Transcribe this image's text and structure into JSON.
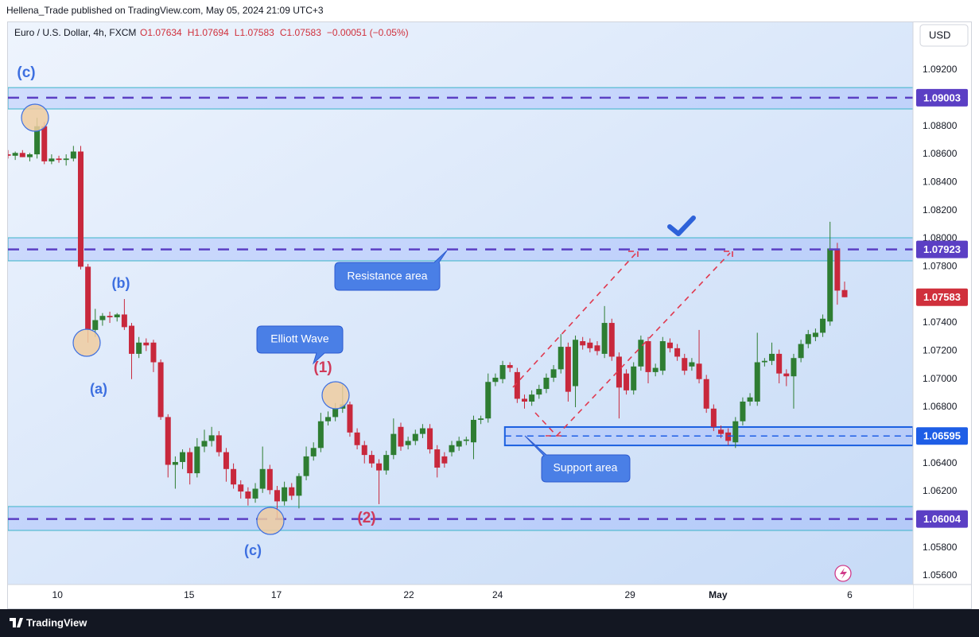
{
  "header": {
    "publisher": "Hellena_Trade published on TradingView.com, May 05, 2024 21:09 UTC+3",
    "logo": "TradingView"
  },
  "chart_data": {
    "type": "candlestick",
    "symbol": "Euro / U.S. Dollar, 4h, FXCM",
    "ohlc_legend": [
      "O1.07634",
      "H1.07694",
      "L1.07583",
      "C1.07583",
      "−0.00051 (−0.05%)"
    ],
    "currency": "USD",
    "up_color": "#2e7d32",
    "down_color": "#c8283c",
    "ohlc": [
      [
        1.086,
        1.0863,
        1.0857,
        1.0859
      ],
      [
        1.0859,
        1.0862,
        1.0856,
        1.0861
      ],
      [
        1.0861,
        1.0863,
        1.0858,
        1.0858
      ],
      [
        1.0858,
        1.0861,
        1.0855,
        1.086
      ],
      [
        1.086,
        1.0886,
        1.0857,
        1.088
      ],
      [
        1.088,
        1.0883,
        1.0853,
        1.0855
      ],
      [
        1.0855,
        1.086,
        1.0853,
        1.0857
      ],
      [
        1.0857,
        1.0859,
        1.0854,
        1.0856
      ],
      [
        1.0856,
        1.086,
        1.0852,
        1.0857
      ],
      [
        1.0857,
        1.0866,
        1.0855,
        1.0862
      ],
      [
        1.0862,
        1.0866,
        1.0778,
        1.078
      ],
      [
        1.078,
        1.0782,
        1.0726,
        1.0735
      ],
      [
        1.0735,
        1.075,
        1.073,
        1.0742
      ],
      [
        1.0742,
        1.0747,
        1.0738,
        1.0745
      ],
      [
        1.0745,
        1.0748,
        1.074,
        1.0744
      ],
      [
        1.0744,
        1.0747,
        1.0741,
        1.0746
      ],
      [
        1.0746,
        1.0757,
        1.0735,
        1.0737
      ],
      [
        1.0738,
        1.074,
        1.07,
        1.0718
      ],
      [
        1.0718,
        1.073,
        1.0715,
        1.0726
      ],
      [
        1.0726,
        1.0729,
        1.072,
        1.0724
      ],
      [
        1.0726,
        1.0728,
        1.0705,
        1.0712
      ],
      [
        1.0712,
        1.0714,
        1.0671,
        1.0673
      ],
      [
        1.0673,
        1.0675,
        1.063,
        1.0639
      ],
      [
        1.0639,
        1.0645,
        1.0622,
        1.0641
      ],
      [
        1.0641,
        1.065,
        1.0636,
        1.0648
      ],
      [
        1.0648,
        1.0651,
        1.0625,
        1.0633
      ],
      [
        1.0633,
        1.0658,
        1.063,
        1.0652
      ],
      [
        1.0652,
        1.0664,
        1.0648,
        1.0656
      ],
      [
        1.0656,
        1.0666,
        1.0652,
        1.066
      ],
      [
        1.066,
        1.0663,
        1.0645,
        1.0648
      ],
      [
        1.0648,
        1.0651,
        1.0627,
        1.0636
      ],
      [
        1.0636,
        1.064,
        1.0622,
        1.0625
      ],
      [
        1.0625,
        1.0628,
        1.0615,
        1.062
      ],
      [
        1.062,
        1.0623,
        1.061,
        1.0615
      ],
      [
        1.0615,
        1.0626,
        1.0612,
        1.0622
      ],
      [
        1.0622,
        1.0652,
        1.0619,
        1.0636
      ],
      [
        1.0636,
        1.0639,
        1.0618,
        1.0621
      ],
      [
        1.0621,
        1.0624,
        1.0601,
        1.0613
      ],
      [
        1.0613,
        1.0627,
        1.061,
        1.0623
      ],
      [
        1.0623,
        1.0626,
        1.0614,
        1.0617
      ],
      [
        1.0617,
        1.0633,
        1.0608,
        1.0631
      ],
      [
        1.0631,
        1.0652,
        1.0628,
        1.0645
      ],
      [
        1.0645,
        1.0655,
        1.0642,
        1.0651
      ],
      [
        1.0651,
        1.0676,
        1.0648,
        1.067
      ],
      [
        1.067,
        1.0677,
        1.0667,
        1.0673
      ],
      [
        1.0673,
        1.0683,
        1.067,
        1.0679
      ],
      [
        1.0679,
        1.0697,
        1.0676,
        1.0682
      ],
      [
        1.0682,
        1.0684,
        1.0659,
        1.0662
      ],
      [
        1.0662,
        1.0665,
        1.065,
        1.0653
      ],
      [
        1.0653,
        1.0656,
        1.064,
        1.0646
      ],
      [
        1.0646,
        1.0649,
        1.0637,
        1.064
      ],
      [
        1.064,
        1.0643,
        1.0611,
        1.0635
      ],
      [
        1.0635,
        1.0649,
        1.0632,
        1.0646
      ],
      [
        1.0646,
        1.0672,
        1.0643,
        1.0661
      ],
      [
        1.0666,
        1.0669,
        1.0649,
        1.0652
      ],
      [
        1.0653,
        1.0659,
        1.065,
        1.0656
      ],
      [
        1.0656,
        1.0664,
        1.0653,
        1.0661
      ],
      [
        1.0661,
        1.0668,
        1.0658,
        1.0665
      ],
      [
        1.0665,
        1.0668,
        1.0647,
        1.065
      ],
      [
        1.065,
        1.0653,
        1.063,
        1.0637
      ],
      [
        1.0645,
        1.0648,
        1.0637,
        1.064
      ],
      [
        1.0648,
        1.0656,
        1.0645,
        1.0653
      ],
      [
        1.0652,
        1.0659,
        1.0649,
        1.0656
      ],
      [
        1.0656,
        1.0659,
        1.0653,
        1.0657
      ],
      [
        1.0655,
        1.0674,
        1.0643,
        1.0671
      ],
      [
        1.0671,
        1.0674,
        1.0668,
        1.0672
      ],
      [
        1.0672,
        1.0704,
        1.0669,
        1.0698
      ],
      [
        1.0698,
        1.0704,
        1.0695,
        1.0701
      ],
      [
        1.07,
        1.0713,
        1.0697,
        1.071
      ],
      [
        1.071,
        1.0712,
        1.0705,
        1.0708
      ],
      [
        1.0705,
        1.0708,
        1.0683,
        1.0686
      ],
      [
        1.0686,
        1.0689,
        1.0679,
        1.0684
      ],
      [
        1.0684,
        1.0692,
        1.0681,
        1.0689
      ],
      [
        1.0689,
        1.0696,
        1.0686,
        1.0693
      ],
      [
        1.0693,
        1.0704,
        1.069,
        1.0701
      ],
      [
        1.0701,
        1.071,
        1.0698,
        1.0707
      ],
      [
        1.0707,
        1.0732,
        1.0704,
        1.0723
      ],
      [
        1.0723,
        1.0726,
        1.0684,
        1.0691
      ],
      [
        1.0695,
        1.0731,
        1.068,
        1.0728
      ],
      [
        1.0727,
        1.073,
        1.0721,
        1.0724
      ],
      [
        1.0726,
        1.0729,
        1.0719,
        1.0722
      ],
      [
        1.0724,
        1.0727,
        1.0717,
        1.072
      ],
      [
        1.0718,
        1.0752,
        1.0715,
        1.074
      ],
      [
        1.074,
        1.0743,
        1.0713,
        1.0716
      ],
      [
        1.0716,
        1.0719,
        1.0672,
        1.0694
      ],
      [
        1.0704,
        1.0707,
        1.0689,
        1.0692
      ],
      [
        1.0692,
        1.0712,
        1.0689,
        1.0709
      ],
      [
        1.0709,
        1.0731,
        1.0706,
        1.0728
      ],
      [
        1.0727,
        1.073,
        1.0697,
        1.0705
      ],
      [
        1.0705,
        1.0711,
        1.0702,
        1.0708
      ],
      [
        1.0706,
        1.073,
        1.0703,
        1.0727
      ],
      [
        1.0726,
        1.0729,
        1.0719,
        1.0722
      ],
      [
        1.0722,
        1.0725,
        1.0713,
        1.0716
      ],
      [
        1.0715,
        1.0718,
        1.0703,
        1.0706
      ],
      [
        1.0709,
        1.0715,
        1.0706,
        1.0712
      ],
      [
        1.0711,
        1.0735,
        1.0697,
        1.07
      ],
      [
        1.07,
        1.0703,
        1.0676,
        1.0679
      ],
      [
        1.0679,
        1.0682,
        1.0663,
        1.0666
      ],
      [
        1.0664,
        1.0667,
        1.0658,
        1.0661
      ],
      [
        1.0662,
        1.0665,
        1.0653,
        1.0656
      ],
      [
        1.0655,
        1.0673,
        1.0651,
        1.067
      ],
      [
        1.067,
        1.0687,
        1.0667,
        1.0684
      ],
      [
        1.0684,
        1.069,
        1.0681,
        1.0687
      ],
      [
        1.0684,
        1.0733,
        1.0681,
        1.0712
      ],
      [
        1.0712,
        1.0715,
        1.0709,
        1.0713
      ],
      [
        1.0713,
        1.0726,
        1.071,
        1.0718
      ],
      [
        1.0718,
        1.0721,
        1.0697,
        1.0704
      ],
      [
        1.0704,
        1.0707,
        1.0695,
        1.0702
      ],
      [
        1.0702,
        1.0718,
        1.0679,
        1.0715
      ],
      [
        1.0715,
        1.0728,
        1.0712,
        1.0725
      ],
      [
        1.0725,
        1.0735,
        1.0722,
        1.0732
      ],
      [
        1.073,
        1.0736,
        1.0727,
        1.0733
      ],
      [
        1.0733,
        1.0746,
        1.073,
        1.0743
      ],
      [
        1.0741,
        1.0812,
        1.0738,
        1.0793
      ],
      [
        1.0793,
        1.0797,
        1.0753,
        1.0763
      ],
      [
        1.07634,
        1.07694,
        1.07583,
        1.07583
      ]
    ],
    "xlim": [
      0,
      124.4
    ],
    "xticks": [
      {
        "value": 6.8,
        "label": "10"
      },
      {
        "value": 24.9,
        "label": "15"
      },
      {
        "value": 36.9,
        "label": "17"
      },
      {
        "value": 55.1,
        "label": "22"
      },
      {
        "value": 67.3,
        "label": "24"
      },
      {
        "value": 85.5,
        "label": "29"
      },
      {
        "value": 97.6,
        "label": "May"
      },
      {
        "value": 115.7,
        "label": "6"
      }
    ],
    "ylim": [
      1.05538,
      1.0954
    ],
    "yticks": [
      {
        "value": 1.056,
        "label": "1.05600"
      },
      {
        "value": 1.058,
        "label": "1.05800"
      },
      {
        "value": 1.06,
        "label": "1.06000"
      },
      {
        "value": 1.062,
        "label": "1.06200"
      },
      {
        "value": 1.064,
        "label": "1.06400"
      },
      {
        "value": 1.066,
        "label": "1.06600"
      },
      {
        "value": 1.068,
        "label": "1.06800"
      },
      {
        "value": 1.07,
        "label": "1.07000"
      },
      {
        "value": 1.072,
        "label": "1.07200"
      },
      {
        "value": 1.074,
        "label": "1.07400"
      },
      {
        "value": 1.076,
        "label": "1.07600"
      },
      {
        "value": 1.078,
        "label": "1.07800"
      },
      {
        "value": 1.08,
        "label": "1.08000"
      },
      {
        "value": 1.082,
        "label": "1.08200"
      },
      {
        "value": 1.084,
        "label": "1.08400"
      },
      {
        "value": 1.086,
        "label": "1.08600"
      },
      {
        "value": 1.088,
        "label": "1.08800"
      },
      {
        "value": 1.09,
        "label": "1.09000"
      },
      {
        "value": 1.092,
        "label": "1.09200"
      }
    ],
    "zones": [
      {
        "range": [
          1.08923,
          1.09075
        ]
      },
      {
        "range": [
          1.07842,
          1.08006
        ]
      },
      {
        "range": [
          1.05923,
          1.06093
        ]
      },
      {
        "range": [
          1.06528,
          1.06659
        ],
        "x_start": 68.3
      }
    ],
    "levels": [
      {
        "value": 1.09003,
        "label": "1.09003",
        "color": "#5b3fc4"
      },
      {
        "value": 1.07923,
        "label": "1.07923",
        "color": "#5b3fc4"
      },
      {
        "value": 1.06004,
        "label": "1.06004",
        "color": "#5b3fc4"
      },
      {
        "value": 1.06595,
        "label": "1.06595",
        "color": "#1e5ee6",
        "x_start": 68.3
      }
    ],
    "last_price": {
      "value": 1.07583,
      "label": "1.07583",
      "color": "#d0303c"
    },
    "annotations": [
      "(c)",
      "(b)",
      "(a)",
      "(c)",
      "(1)",
      "(2)",
      "Elliott Wave",
      "Resistance area",
      "Support area"
    ]
  }
}
